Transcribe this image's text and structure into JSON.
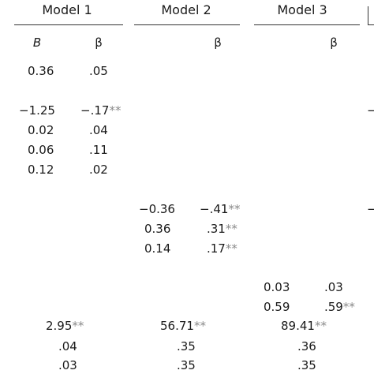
{
  "headers": {
    "model1": "Model 1",
    "model2": "Model 2",
    "model3": "Model 3"
  },
  "subheaders": {
    "m1_B": "B",
    "m1_beta": "β",
    "m2_beta": "β",
    "m3_beta": "β"
  },
  "model1": {
    "r1_b": "0.36",
    "r1_beta": ".05",
    "r2_b": "−1.25",
    "r2_beta": "−.17",
    "r2_stars": "**",
    "r3_b": "0.02",
    "r3_beta": ".04",
    "r4_b": "0.06",
    "r4_beta": ".11",
    "r5_b": "0.12",
    "r5_beta": ".02"
  },
  "model2": {
    "r1_b": "−0.36",
    "r1_beta": "−.41",
    "r1_stars": "**",
    "r2_b": "0.36",
    "r2_beta": ".31",
    "r2_stars": "**",
    "r3_b": "0.14",
    "r3_beta": ".17",
    "r3_stars": "**"
  },
  "model3": {
    "r1_b": "0.03",
    "r1_beta": ".03",
    "r2_b": "0.59",
    "r2_beta": ".59",
    "r2_stars": "**"
  },
  "summary": {
    "f1": "2.95",
    "f1_stars": "**",
    "f2": "56.71",
    "f2_stars": "**",
    "f3": "89.41",
    "f3_stars": "**",
    "r2_1": ".04",
    "r2_2": ".35",
    "r2_3": ".36",
    "adj1": ".03",
    "adj2": ".35",
    "adj3": ".35"
  },
  "edge_marks": {
    "m4_r2": "−",
    "m4_r6": "−"
  }
}
